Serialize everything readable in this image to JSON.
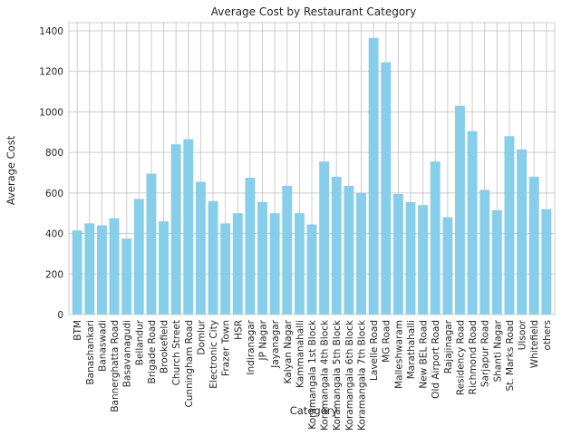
{
  "chart_data": {
    "type": "bar",
    "title": "Average Cost by Restaurant Category",
    "xlabel": "Category",
    "ylabel": "Average Cost",
    "ylim": [
      0,
      1440
    ],
    "yticks": [
      0,
      200,
      400,
      600,
      800,
      1000,
      1200,
      1400
    ],
    "grid": true,
    "bar_color": "#87ceeb",
    "categories": [
      "BTM",
      "Banashankari",
      "Banaswadi",
      "Bannerghatta Road",
      "Basavanagudi",
      "Bellandur",
      "Brigade Road",
      "Brookefield",
      "Church Street",
      "Cunningham Road",
      "Domlur",
      "Electronic City",
      "Frazer Town",
      "HSR",
      "Indiranagar",
      "JP Nagar",
      "Jayanagar",
      "Kalyan Nagar",
      "Kammanahalli",
      "Koramangala 1st Block",
      "Koramangala 4th Block",
      "Koramangala 5th Block",
      "Koramangala 6th Block",
      "Koramangala 7th Block",
      "Lavelle Road",
      "MG Road",
      "Malleshwaram",
      "Marathahalli",
      "New BEL Road",
      "Old Airport Road",
      "Rajajinagar",
      "Residency Road",
      "Richmond Road",
      "Sarjapur Road",
      "Shanti Nagar",
      "St. Marks Road",
      "Ulsoor",
      "Whitefield",
      "others"
    ],
    "values": [
      415,
      450,
      440,
      475,
      375,
      570,
      695,
      460,
      840,
      865,
      655,
      560,
      450,
      500,
      675,
      555,
      500,
      635,
      500,
      445,
      755,
      680,
      635,
      600,
      1365,
      1245,
      595,
      555,
      540,
      755,
      480,
      1030,
      905,
      615,
      515,
      880,
      815,
      680,
      520
    ]
  }
}
